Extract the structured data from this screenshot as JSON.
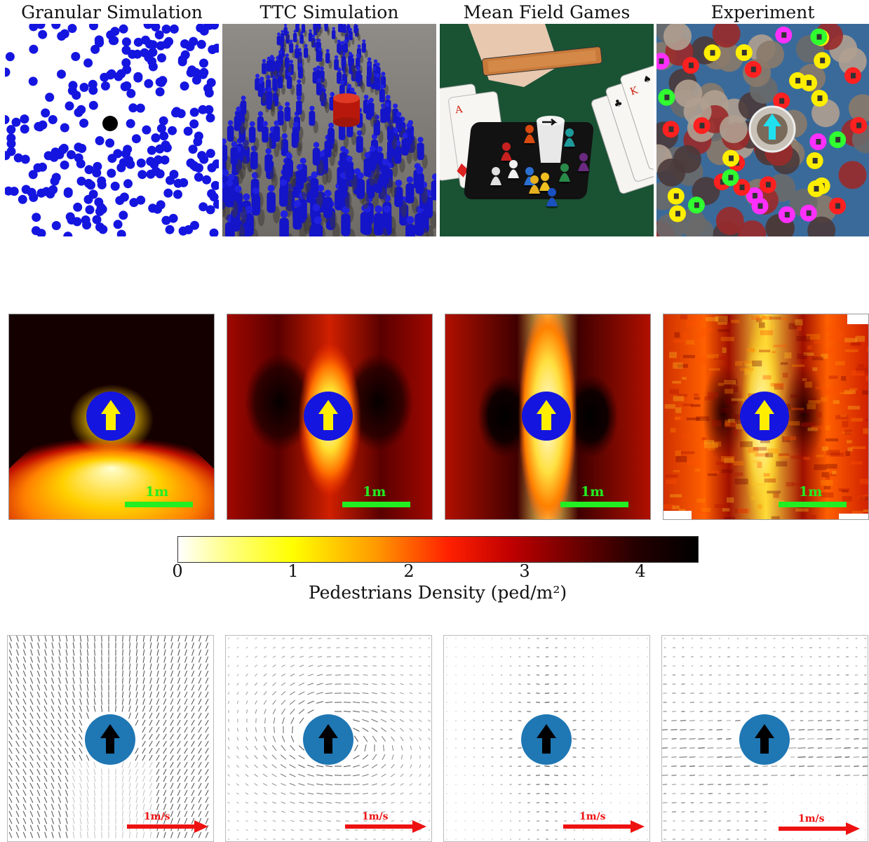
{
  "columns": [
    {
      "title": "Granular Simulation",
      "scale_label": "1m",
      "velocity_label": "1m/s"
    },
    {
      "title": "TTC Simulation",
      "scale_label": "1m",
      "velocity_label": "1m/s"
    },
    {
      "title": "Mean Field Games",
      "scale_label": "1m",
      "velocity_label": "1m/s"
    },
    {
      "title": "Experiment",
      "scale_label": "1m",
      "velocity_label": "1m/s"
    }
  ],
  "colorbar": {
    "ticks": [
      "0",
      "1",
      "2",
      "3",
      "4"
    ],
    "label": "Pedestrians Density (ped/m²)",
    "range": [
      0,
      4.5
    ],
    "colormap": "hot-reversed"
  },
  "colors": {
    "agent_blue": "#1515e0",
    "agent_arrow_yellow": "#ffee00",
    "vector_agent": "#1f77b4",
    "scale_bar": "#22ee22",
    "velocity_arrow": "#ee1111"
  }
}
